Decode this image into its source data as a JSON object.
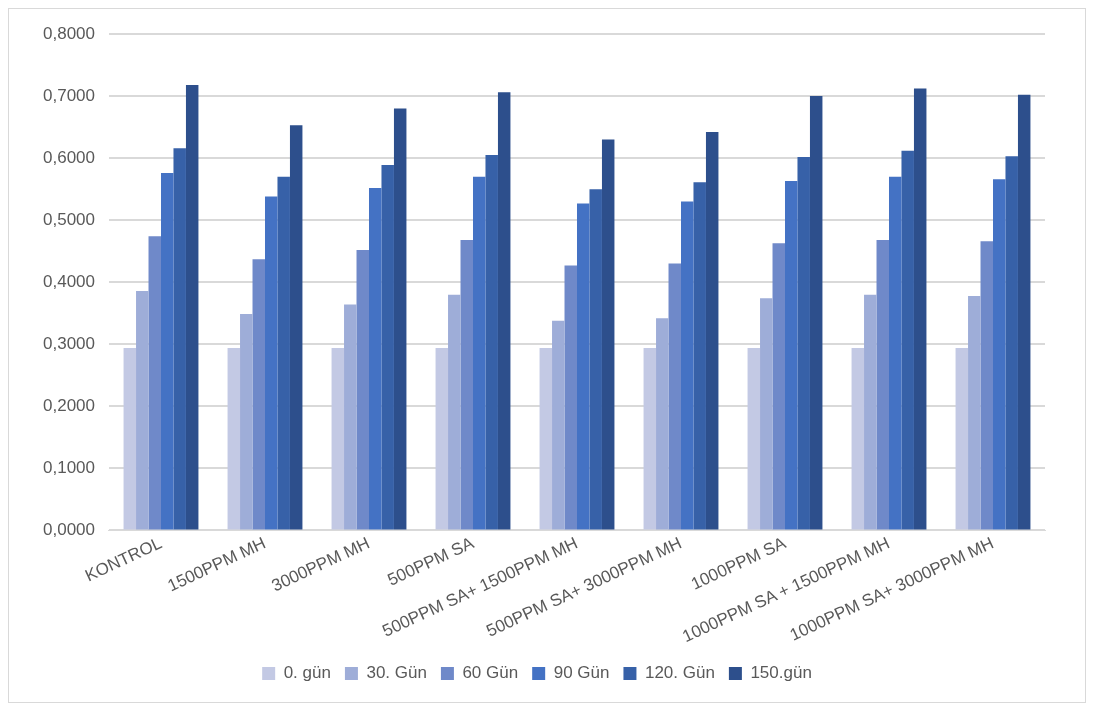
{
  "chart_data": {
    "type": "bar",
    "categories": [
      "KONTROL",
      "1500PPM MH",
      "3000PPM MH",
      "500PPM SA",
      "500PPM SA+ 1500PPM MH",
      "500PPM SA+ 3000PPM MH",
      "1000PPM SA",
      "1000PPM SA + 1500PPM MH",
      "1000PPM SA+ 3000PPM MH"
    ],
    "series": [
      {
        "name": "0. gün",
        "color": "#c3c9e4",
        "values": [
          0.294,
          0.294,
          0.294,
          0.294,
          0.294,
          0.294,
          0.294,
          0.294,
          0.294
        ]
      },
      {
        "name": "30. Gün",
        "color": "#9eadd8",
        "values": [
          0.386,
          0.349,
          0.364,
          0.38,
          0.338,
          0.342,
          0.374,
          0.38,
          0.378
        ]
      },
      {
        "name": "60 Gün",
        "color": "#6f89c9",
        "values": [
          0.474,
          0.437,
          0.452,
          0.468,
          0.427,
          0.43,
          0.463,
          0.468,
          0.466
        ]
      },
      {
        "name": "90 Gün",
        "color": "#4472c4",
        "values": [
          0.576,
          0.538,
          0.552,
          0.57,
          0.527,
          0.53,
          0.563,
          0.57,
          0.566
        ]
      },
      {
        "name": "120. Gün",
        "color": "#3761a8",
        "values": [
          0.616,
          0.57,
          0.589,
          0.605,
          0.55,
          0.561,
          0.602,
          0.612,
          0.603
        ]
      },
      {
        "name": "150.gün",
        "color": "#2d4f8c",
        "values": [
          0.718,
          0.653,
          0.68,
          0.706,
          0.63,
          0.642,
          0.7,
          0.712,
          0.702
        ]
      }
    ],
    "ylim": [
      0,
      0.8
    ],
    "yticks": [
      {
        "value": 0,
        "label": "0,0000"
      },
      {
        "value": 0.1,
        "label": "0,1000"
      },
      {
        "value": 0.2,
        "label": "0,2000"
      },
      {
        "value": 0.3,
        "label": "0,3000"
      },
      {
        "value": 0.4,
        "label": "0,4000"
      },
      {
        "value": 0.5,
        "label": "0,5000"
      },
      {
        "value": 0.6,
        "label": "0,6000"
      },
      {
        "value": 0.7,
        "label": "0,7000"
      },
      {
        "value": 0.8,
        "label": "0,8000"
      }
    ],
    "grid": "y",
    "legend": "bottom"
  }
}
